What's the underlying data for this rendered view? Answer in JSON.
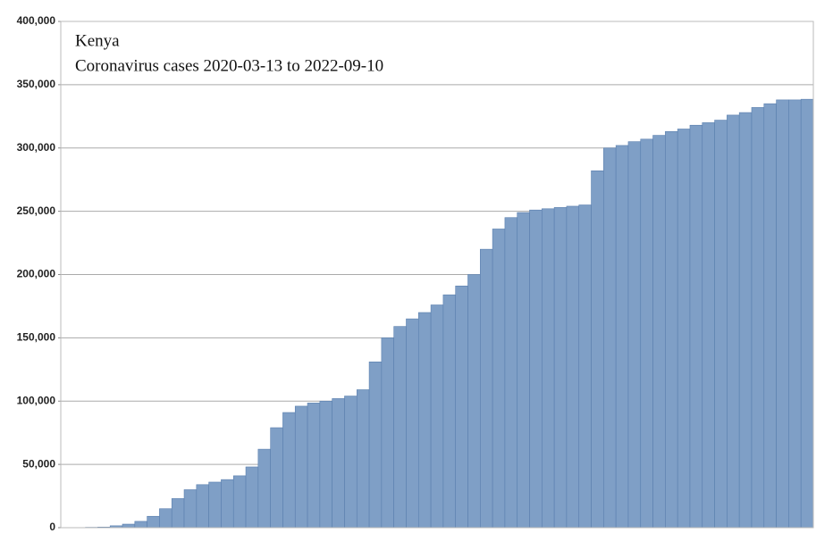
{
  "chart_data": {
    "type": "bar",
    "title": "Kenya",
    "subtitle": "Coronavirus cases 2020-03-13 to 2022-09-10",
    "categories": [
      null,
      null,
      null,
      null,
      null,
      null,
      null,
      null,
      null,
      null,
      null,
      null,
      null,
      null,
      null,
      null,
      null,
      null,
      null,
      null,
      null,
      null,
      null,
      null,
      null,
      null,
      null,
      null,
      null,
      null,
      null,
      null,
      null,
      null,
      null,
      null,
      null,
      null,
      null,
      null,
      null,
      null,
      null,
      null,
      null,
      null,
      null,
      null,
      null,
      null,
      null,
      null,
      null,
      null,
      null,
      null,
      null,
      null,
      null,
      null,
      null
    ],
    "values": [
      0,
      100,
      300,
      500,
      1500,
      2800,
      5000,
      9000,
      15000,
      23000,
      30000,
      34000,
      36000,
      38000,
      41000,
      48000,
      62000,
      79000,
      91000,
      96000,
      98500,
      100000,
      102000,
      104000,
      109000,
      131000,
      150000,
      159000,
      165000,
      170000,
      176000,
      184000,
      191000,
      200000,
      220000,
      236000,
      245000,
      249000,
      251000,
      252000,
      253000,
      254000,
      255000,
      282000,
      300000,
      302000,
      305000,
      307000,
      310000,
      313000,
      315000,
      318000,
      320000,
      322000,
      326000,
      328000,
      332000,
      335000,
      338000,
      338000,
      338500
    ],
    "color": "#7f9fc6",
    "ylim": [
      0,
      400000
    ],
    "yticks": [
      0,
      {
        "value": 50000,
        "label": "50,000"
      },
      {
        "value": 100000,
        "label": "100,000"
      },
      {
        "value": 150000,
        "label": "150,000"
      },
      {
        "value": 200000,
        "label": "200,000"
      },
      {
        "value": 250000,
        "label": "250,000"
      },
      {
        "value": 300000,
        "label": "300,000"
      },
      {
        "value": 350000,
        "label": "350,000"
      },
      {
        "value": 400000,
        "label": "400,000"
      }
    ],
    "grid": true
  }
}
